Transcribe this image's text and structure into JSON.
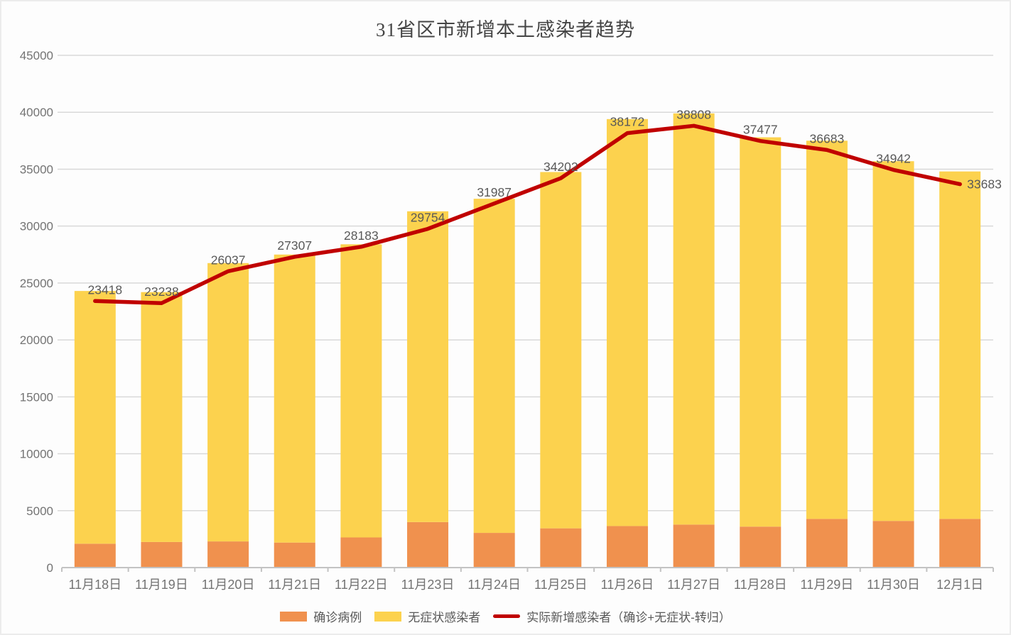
{
  "page": {
    "title": "31省区市新增本土感染者趋势"
  },
  "chart_data": {
    "type": "bar",
    "subtype": "stacked-bars-with-line-overlay",
    "title": "31省区市新增本土感染者趋势",
    "categories": [
      "11月18日",
      "11月19日",
      "11月20日",
      "11月21日",
      "11月22日",
      "11月23日",
      "11月24日",
      "11月25日",
      "11月26日",
      "11月27日",
      "11月28日",
      "11月29日",
      "11月30日",
      "12月1日"
    ],
    "series": [
      {
        "name": "确诊病例",
        "type": "bar",
        "stack": "total",
        "color": "#F0914E",
        "values": [
          2100,
          2250,
          2300,
          2200,
          2650,
          4000,
          3050,
          3450,
          3650,
          3780,
          3600,
          4280,
          4100,
          4280
        ]
      },
      {
        "name": "无症状感染者",
        "type": "bar",
        "stack": "total",
        "color": "#FCD24E",
        "values": [
          22200,
          21950,
          24450,
          25300,
          25750,
          27300,
          29350,
          31300,
          35750,
          36120,
          34200,
          33220,
          31600,
          30520
        ]
      },
      {
        "name": "实际新增感染者（确诊+无症状-转归）",
        "type": "line",
        "color": "#C00000",
        "values": [
          23418,
          23238,
          26037,
          27307,
          28183,
          29754,
          31987,
          34202,
          38172,
          38808,
          37477,
          36683,
          34942,
          33683
        ],
        "data_labels": [
          "23418",
          "23238",
          "26037",
          "27307",
          "28183",
          "29754",
          "31987",
          "34202",
          "38172",
          "38808",
          "37477",
          "36683",
          "34942",
          "33683"
        ]
      }
    ],
    "xlabel": "",
    "ylabel": "",
    "y_axis": {
      "min": 0,
      "max": 45000,
      "step": 5000,
      "tick_labels": [
        "0",
        "5000",
        "10000",
        "15000",
        "20000",
        "25000",
        "30000",
        "35000",
        "40000",
        "45000"
      ]
    },
    "grid": "horizontal",
    "legend_position": "bottom",
    "colors": {
      "grid_line": "#d9d9d9",
      "axis_line": "#c3c3c3",
      "tick_label": "#737373",
      "data_label": "#595959",
      "title": "#454545"
    }
  }
}
